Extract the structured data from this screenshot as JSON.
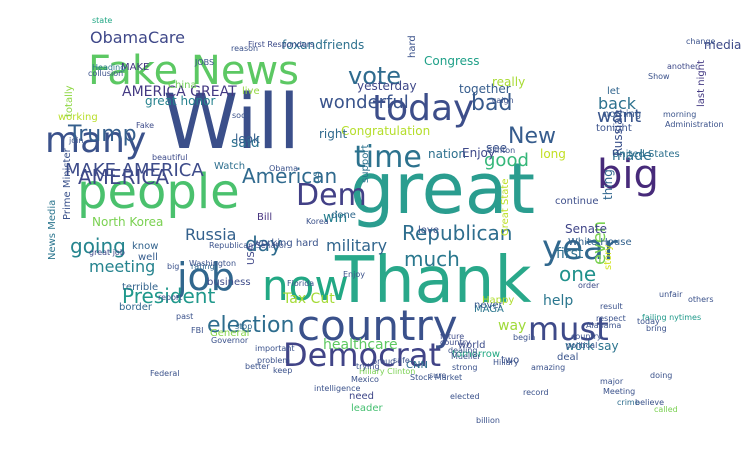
{
  "words": [
    {
      "text": "Will",
      "color": "#3b4f8a"
    },
    {
      "text": "great",
      "color": "#2a9d8f"
    },
    {
      "text": "Thank",
      "color": "#29a88a"
    },
    {
      "text": "people",
      "color": "#4ac16d"
    },
    {
      "text": "Fake News",
      "color": "#5cc863"
    },
    {
      "text": "country",
      "color": "#3a518b"
    },
    {
      "text": "now",
      "color": "#22a884"
    },
    {
      "text": "today",
      "color": "#3d4e8a"
    },
    {
      "text": "many",
      "color": "#3b528b"
    },
    {
      "text": "Democrat",
      "color": "#414487"
    },
    {
      "text": "big",
      "color": "#472a7a"
    },
    {
      "text": "year",
      "color": "#31688e"
    },
    {
      "text": "must",
      "color": "#3e4a89"
    },
    {
      "text": "job",
      "color": "#31678e"
    },
    {
      "text": "time",
      "color": "#2c728e"
    },
    {
      "text": "Dem",
      "color": "#424086"
    },
    {
      "text": "AMERICA",
      "color": "#3f4788"
    },
    {
      "text": "Republican",
      "color": "#2e6e8e"
    },
    {
      "text": "American",
      "color": "#306a8e"
    },
    {
      "text": "President",
      "color": "#1f988b"
    },
    {
      "text": "election",
      "color": "#2e6d8e"
    },
    {
      "text": "vote",
      "color": "#2f6b8e"
    },
    {
      "text": "Trump",
      "color": "#355f8d"
    },
    {
      "text": "New",
      "color": "#365c8d"
    },
    {
      "text": "good",
      "color": "#35b779"
    },
    {
      "text": "bad",
      "color": "#375a8c"
    },
    {
      "text": "wonderful",
      "color": "#3a548c"
    },
    {
      "text": "much",
      "color": "#2a788e"
    },
    {
      "text": "want",
      "color": "#39558c"
    },
    {
      "text": "back",
      "color": "#2c718e"
    },
    {
      "text": "made",
      "color": "#2d708e"
    },
    {
      "text": "going",
      "color": "#25858e"
    },
    {
      "text": "day",
      "color": "#2f6c8e"
    },
    {
      "text": "Russia",
      "color": "#34618d"
    },
    {
      "text": "military",
      "color": "#31668e"
    },
    {
      "text": "one",
      "color": "#21918c"
    },
    {
      "text": "even",
      "color": "#7ad151"
    },
    {
      "text": "Tax Cut",
      "color": "#a5db36"
    },
    {
      "text": "ObamaCare",
      "color": "#3f4889"
    },
    {
      "text": "AMERICA GREAT",
      "color": "#443983"
    },
    {
      "text": "said",
      "color": "#2d718e"
    },
    {
      "text": "help",
      "color": "#2a768e"
    },
    {
      "text": "way",
      "color": "#9fda3a"
    },
    {
      "text": "meeting",
      "color": "#25838e"
    },
    {
      "text": "MAKE AMERICA",
      "color": "#3e4c8a"
    },
    {
      "text": "first",
      "color": "#2e6f8e"
    },
    {
      "text": "Congratulation",
      "color": "#b5de2b"
    },
    {
      "text": "great honor",
      "color": "#26828e"
    },
    {
      "text": "foxandfriends",
      "color": "#2d718e"
    },
    {
      "text": "win",
      "color": "#277f8e"
    },
    {
      "text": "look",
      "color": "#355f8d"
    },
    {
      "text": "right",
      "color": "#306a8e"
    },
    {
      "text": "healthcare",
      "color": "#5ec962"
    },
    {
      "text": "tonight",
      "color": "#3b528b"
    },
    {
      "text": "Senate",
      "color": "#404588"
    },
    {
      "text": "work say",
      "color": "#2b748e"
    },
    {
      "text": "nation",
      "color": "#2d708e"
    },
    {
      "text": "really",
      "color": "#a8db34"
    },
    {
      "text": "yesterday",
      "color": "#3f4889"
    },
    {
      "text": "together",
      "color": "#365d8d"
    },
    {
      "text": "Enjoy",
      "color": "#3e4989"
    },
    {
      "text": "see",
      "color": "#3b528b"
    },
    {
      "text": "long",
      "color": "#c2df23"
    },
    {
      "text": "nothing",
      "color": "#38588c"
    },
    {
      "text": "let",
      "color": "#32658e"
    },
    {
      "text": "United States",
      "color": "#2d708e"
    },
    {
      "text": "Russian",
      "color": "#3b518b"
    },
    {
      "text": "thing",
      "color": "#31668e"
    },
    {
      "text": "story",
      "color": "#d0e11c"
    },
    {
      "text": "last night",
      "color": "#443a83"
    },
    {
      "text": "media",
      "color": "#3e4a89"
    },
    {
      "text": "continue",
      "color": "#3d4e8a"
    },
    {
      "text": "White House",
      "color": "#33628d"
    },
    {
      "text": "North Korea",
      "color": "#7ad151"
    },
    {
      "text": "Prime Minister",
      "color": "#3b528b"
    },
    {
      "text": "News Media",
      "color": "#2b758e"
    },
    {
      "text": "know",
      "color": "#33638d"
    },
    {
      "text": "well",
      "color": "#365c8d"
    },
    {
      "text": "Watch",
      "color": "#2e6f8e"
    },
    {
      "text": "Bill",
      "color": "#46327e"
    },
    {
      "text": "business",
      "color": "#3e4c8a"
    },
    {
      "text": "border",
      "color": "#31678e"
    },
    {
      "text": "terrible",
      "color": "#33638d"
    },
    {
      "text": "General",
      "color": "#86d549"
    },
    {
      "text": "MAGA",
      "color": "#2a768e"
    },
    {
      "text": "Happy",
      "color": "#b0dd2f"
    },
    {
      "text": "never",
      "color": "#38598c"
    },
    {
      "text": "world",
      "color": "#3d4d8a"
    },
    {
      "text": "tomorrow",
      "color": "#23a983"
    },
    {
      "text": "two",
      "color": "#3b528b"
    },
    {
      "text": "deal",
      "color": "#3a548c"
    },
    {
      "text": "need",
      "color": "#3f4788"
    },
    {
      "text": "leader",
      "color": "#44bf70"
    },
    {
      "text": "CNN",
      "color": "#2e6e8e"
    },
    {
      "text": "working",
      "color": "#b8de29"
    },
    {
      "text": "totally",
      "color": "#8fd744"
    },
    {
      "text": "China",
      "color": "#70cf57"
    },
    {
      "text": "MAKE",
      "color": "#453882"
    },
    {
      "text": "Congress",
      "color": "#1fa088"
    },
    {
      "text": "hard",
      "color": "#3b528b"
    },
    {
      "text": "us",
      "color": "#2e6e8e"
    },
    {
      "text": "support",
      "color": "#2c728e"
    },
    {
      "text": "done",
      "color": "#30698e"
    },
    {
      "text": "working hard",
      "color": "#3a538b"
    },
    {
      "text": "USA",
      "color": "#3f4788"
    },
    {
      "text": "love",
      "color": "#3b528b"
    },
    {
      "text": "live",
      "color": "#93d741"
    },
    {
      "text": "Great State",
      "color": "#bddf26"
    },
    {
      "text": "state",
      "color": "#22a785"
    },
    {
      "text": "First Responders",
      "color": "#3e4c8a"
    },
    {
      "text": "collusion",
      "color": "#3b528b"
    },
    {
      "text": "Heading",
      "color": "#2a788e"
    },
    {
      "text": "Fake",
      "color": "#3e4c8a"
    },
    {
      "text": "another",
      "color": "#3e4989"
    },
    {
      "text": "morning",
      "color": "#3a548c"
    },
    {
      "text": "Administration",
      "color": "#3b528b"
    },
    {
      "text": "strong",
      "color": "#3b528b"
    },
    {
      "text": "Hillary Clinton",
      "color": "#7ad151"
    },
    {
      "text": "Stock Market",
      "color": "#3a548c"
    },
    {
      "text": "Clinton",
      "color": "#3b528b"
    },
    {
      "text": "failing nytimes",
      "color": "#1f998a"
    },
    {
      "text": "Alabama",
      "color": "#3b528b"
    },
    {
      "text": "crime",
      "color": "#2e6e8e"
    },
    {
      "text": "believe",
      "color": "#3b528b"
    },
    {
      "text": "called",
      "color": "#7ad151"
    },
    {
      "text": "problem",
      "color": "#3b528b"
    },
    {
      "text": "rating",
      "color": "#31688e"
    },
    {
      "text": "great job",
      "color": "#3e4989"
    },
    {
      "text": "Washington",
      "color": "#3b528b"
    },
    {
      "text": "beautiful",
      "color": "#3e4c8a"
    },
    {
      "text": "Republican Senator",
      "color": "#3b528b"
    },
    {
      "text": "Florida",
      "color": "#3a548c"
    },
    {
      "text": "Mexico",
      "color": "#3b528b"
    },
    {
      "text": "future",
      "color": "#3e4c8a"
    },
    {
      "text": "amazing",
      "color": "#3b528b"
    },
    {
      "text": "Governor",
      "color": "#3b528b"
    },
    {
      "text": "stop",
      "color": "#31688e"
    },
    {
      "text": "join",
      "color": "#3b528b"
    },
    {
      "text": "country",
      "color": "#3e4c8a"
    },
    {
      "text": "intelligence",
      "color": "#3b528b"
    },
    {
      "text": "proud",
      "color": "#3b528b"
    },
    {
      "text": "order",
      "color": "#3e4c8a"
    },
    {
      "text": "past",
      "color": "#3b528b"
    },
    {
      "text": "big",
      "color": "#3b528b"
    },
    {
      "text": "report",
      "color": "#3b528b"
    },
    {
      "text": "FBI",
      "color": "#3b528b"
    },
    {
      "text": "Federal",
      "color": "#3b528b"
    },
    {
      "text": "better",
      "color": "#3b528b"
    },
    {
      "text": "important",
      "color": "#3b528b"
    },
    {
      "text": "keep",
      "color": "#3b528b"
    },
    {
      "text": "trying",
      "color": "#3b528b"
    },
    {
      "text": "safe",
      "color": "#3b528b"
    },
    {
      "text": "sure",
      "color": "#3b528b"
    },
    {
      "text": "elected",
      "color": "#3b528b"
    },
    {
      "text": "billion",
      "color": "#3b528b"
    },
    {
      "text": "record",
      "color": "#3b528b"
    },
    {
      "text": "major",
      "color": "#3b528b"
    },
    {
      "text": "today",
      "color": "#3b528b"
    },
    {
      "text": "doing",
      "color": "#3b528b"
    },
    {
      "text": "change",
      "color": "#3b528b"
    },
    {
      "text": "Show",
      "color": "#3b528b"
    },
    {
      "text": "country",
      "color": "#3b528b"
    },
    {
      "text": "unfair",
      "color": "#3b528b"
    },
    {
      "text": "others",
      "color": "#3b528b"
    },
    {
      "text": "Meeting",
      "color": "#3b528b"
    },
    {
      "text": "political",
      "color": "#3b528b"
    },
    {
      "text": "begin",
      "color": "#3b528b"
    },
    {
      "text": "reason",
      "color": "#3b528b"
    },
    {
      "text": "dealing",
      "color": "#3b528b"
    },
    {
      "text": "Hillary",
      "color": "#3b528b"
    },
    {
      "text": "Mueller",
      "color": "#3b528b"
    },
    {
      "text": "caign",
      "color": "#3b528b"
    },
    {
      "text": "result",
      "color": "#3b528b"
    },
    {
      "text": "respect",
      "color": "#3b528b"
    },
    {
      "text": "bring",
      "color": "#3b528b"
    },
    {
      "text": "JOBS",
      "color": "#3b528b"
    },
    {
      "text": "soon",
      "color": "#3b528b"
    },
    {
      "text": "Obama",
      "color": "#3b528b"
    },
    {
      "text": "Korea",
      "color": "#3b528b"
    },
    {
      "text": "Enjoy",
      "color": "#3b528b"
    }
  ]
}
